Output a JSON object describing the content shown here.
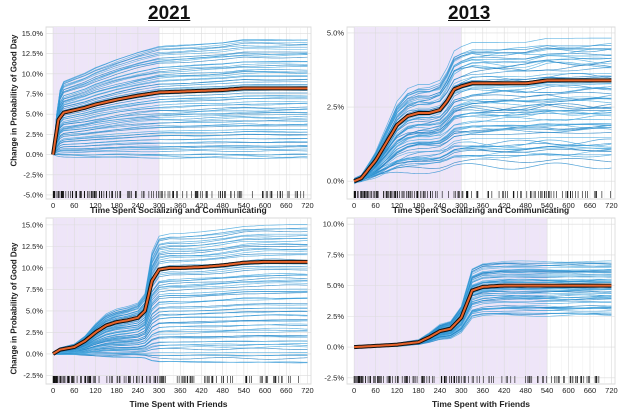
{
  "headers": {
    "left_year": "2021",
    "right_year": "2013"
  },
  "ylabel_common": "Change in Probability of Good Day",
  "chart_data": [
    {
      "id": "p1",
      "type": "line",
      "title": "2021",
      "xlabel": "Time Spent Socializing and Communicating",
      "ylabel": "Change in Probability of Good Day",
      "x_ticks": [
        0,
        60,
        120,
        180,
        240,
        300,
        360,
        420,
        480,
        540,
        600,
        660,
        720
      ],
      "y_ticks": [
        -0.05,
        -0.025,
        0,
        0.025,
        0.05,
        0.075,
        0.1,
        0.125,
        0.15
      ],
      "y_tick_labels": [
        "-5.0%",
        "-2.5%",
        "0.0%",
        "2.5%",
        "5.0%",
        "7.5%",
        "10.0%",
        "12.5%",
        "15.0%"
      ],
      "xlim": [
        -20,
        730
      ],
      "ylim": [
        -0.055,
        0.158
      ],
      "shaded_x": [
        0,
        300
      ],
      "average_curve": {
        "x": [
          0,
          15,
          30,
          60,
          90,
          120,
          180,
          240,
          300,
          360,
          420,
          480,
          540,
          600,
          660,
          720
        ],
        "y": [
          0,
          0.043,
          0.052,
          0.055,
          0.058,
          0.062,
          0.068,
          0.073,
          0.077,
          0.078,
          0.079,
          0.08,
          0.082,
          0.082,
          0.082,
          0.082
        ]
      },
      "ice_spread": {
        "final_min": -0.005,
        "final_max": 0.143,
        "n": 70
      }
    },
    {
      "id": "p2",
      "type": "line",
      "title": "2013",
      "xlabel": "Time Spent Socializing and Communicating",
      "ylabel": "",
      "x_ticks": [
        0,
        60,
        120,
        180,
        240,
        300,
        360,
        420,
        480,
        540,
        600,
        660,
        720
      ],
      "y_ticks": [
        0,
        0.025,
        0.05
      ],
      "y_tick_labels": [
        "0.0%",
        "2.5%",
        "5.0%"
      ],
      "xlim": [
        -20,
        730
      ],
      "ylim": [
        -0.006,
        0.052
      ],
      "shaded_x": [
        0,
        300
      ],
      "average_curve": {
        "x": [
          0,
          20,
          40,
          60,
          90,
          120,
          150,
          180,
          210,
          240,
          260,
          280,
          300,
          330,
          360,
          420,
          480,
          540,
          600,
          660,
          720
        ],
        "y": [
          0,
          0.001,
          0.004,
          0.007,
          0.013,
          0.019,
          0.022,
          0.023,
          0.023,
          0.024,
          0.027,
          0.031,
          0.032,
          0.033,
          0.033,
          0.033,
          0.033,
          0.034,
          0.034,
          0.034,
          0.034
        ]
      },
      "ice_spread": {
        "final_min": 0.007,
        "final_max": 0.047,
        "n": 70
      }
    },
    {
      "id": "p3",
      "type": "line",
      "title": "2021",
      "xlabel": "Time Spent with Friends",
      "ylabel": "Change in Probability of Good Day",
      "x_ticks": [
        0,
        60,
        120,
        180,
        240,
        300,
        360,
        420,
        480,
        540,
        600,
        660,
        720
      ],
      "y_ticks": [
        -0.025,
        0,
        0.025,
        0.05,
        0.075,
        0.1,
        0.125,
        0.15
      ],
      "y_tick_labels": [
        "-2.5%",
        "0.0%",
        "2.5%",
        "5.0%",
        "7.5%",
        "10.0%",
        "12.5%",
        "15.0%"
      ],
      "xlim": [
        -20,
        730
      ],
      "ylim": [
        -0.035,
        0.158
      ],
      "shaded_x": [
        0,
        300
      ],
      "average_curve": {
        "x": [
          0,
          20,
          60,
          90,
          120,
          150,
          180,
          210,
          240,
          260,
          280,
          300,
          330,
          360,
          420,
          480,
          540,
          600,
          660,
          720
        ],
        "y": [
          0,
          0.005,
          0.008,
          0.015,
          0.025,
          0.033,
          0.037,
          0.039,
          0.042,
          0.05,
          0.085,
          0.098,
          0.1,
          0.1,
          0.101,
          0.103,
          0.106,
          0.107,
          0.107,
          0.107
        ]
      },
      "ice_spread": {
        "final_min": -0.01,
        "final_max": 0.15,
        "n": 70
      }
    },
    {
      "id": "p4",
      "type": "line",
      "title": "2013",
      "xlabel": "Time Spent with Friends",
      "ylabel": "",
      "x_ticks": [
        0,
        60,
        120,
        180,
        240,
        300,
        360,
        420,
        480,
        540,
        600,
        660,
        720
      ],
      "y_ticks": [
        -0.025,
        0,
        0.025,
        0.05,
        0.075,
        0.1
      ],
      "y_tick_labels": [
        "-2.5%",
        "0.0%",
        "2.5%",
        "5.0%",
        "7.5%",
        "10.0%"
      ],
      "xlim": [
        -20,
        730
      ],
      "ylim": [
        -0.03,
        0.105
      ],
      "shaded_x": [
        0,
        540
      ],
      "average_curve": {
        "x": [
          0,
          60,
          120,
          180,
          210,
          240,
          270,
          300,
          330,
          360,
          420,
          480,
          540,
          600,
          660,
          720
        ],
        "y": [
          0,
          0.001,
          0.002,
          0.004,
          0.008,
          0.013,
          0.015,
          0.024,
          0.046,
          0.049,
          0.05,
          0.05,
          0.05,
          0.05,
          0.05,
          0.05
        ]
      },
      "ice_spread": {
        "final_min": 0.027,
        "final_max": 0.069,
        "n": 60
      }
    }
  ]
}
